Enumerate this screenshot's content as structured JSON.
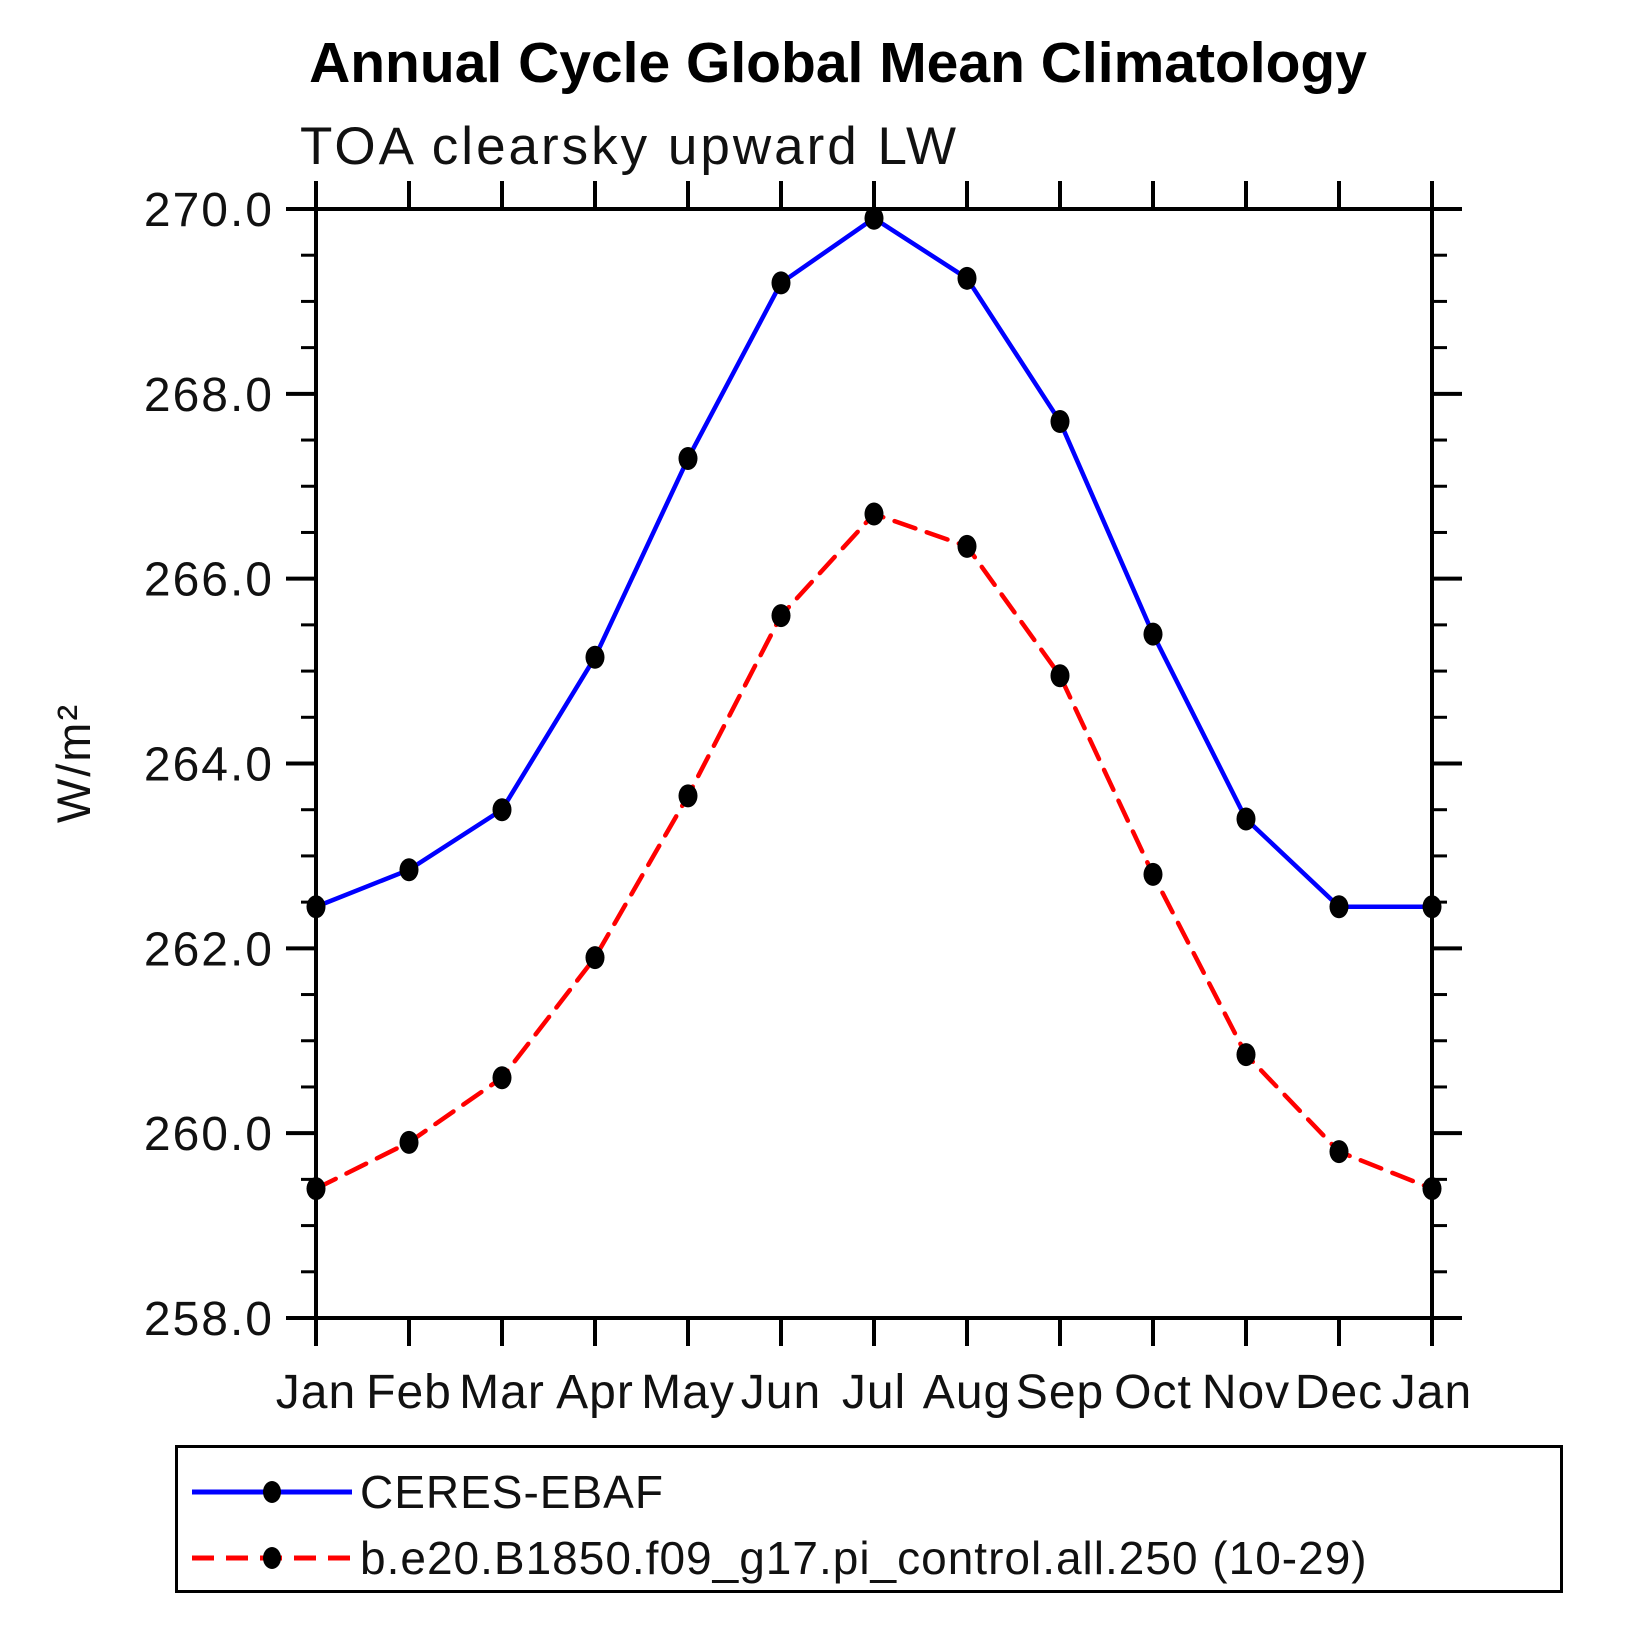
{
  "title": "Annual Cycle Global Mean Climatology",
  "subtitle": "TOA clearsky upward LW",
  "chart_data": {
    "type": "line",
    "title": "Annual Cycle Global Mean Climatology",
    "subtitle": "TOA clearsky upward LW",
    "ylabel": "W/m²",
    "xlabel": "",
    "x_categories": [
      "Jan",
      "Feb",
      "Mar",
      "Apr",
      "May",
      "Jun",
      "Jul",
      "Aug",
      "Sep",
      "Oct",
      "Nov",
      "Dec",
      "Jan"
    ],
    "ylim": [
      258.0,
      270.0
    ],
    "ytick_major_interval": 2.0,
    "ytick_minor_interval": 0.5,
    "ytick_labels": [
      "258.0",
      "260.0",
      "262.0",
      "264.0",
      "266.0",
      "268.0",
      "270.0"
    ],
    "grid": "off",
    "legend_position": "bottom-left-box",
    "series": [
      {
        "name": "CERES-EBAF",
        "color": "#0000ff",
        "line_style": "solid",
        "marker": "filled-circle",
        "marker_color": "#000000",
        "values": [
          262.45,
          262.85,
          263.5,
          265.15,
          267.3,
          269.2,
          269.9,
          269.25,
          267.7,
          265.4,
          263.4,
          262.45,
          262.45
        ]
      },
      {
        "name": "b.e20.B1850.f09_g17.pi_control.all.250 (10-29)",
        "color": "#ff0000",
        "line_style": "dashed",
        "marker": "filled-circle",
        "marker_color": "#000000",
        "values": [
          259.4,
          259.9,
          260.6,
          261.9,
          263.65,
          265.6,
          266.7,
          266.35,
          264.95,
          262.8,
          260.85,
          259.8,
          259.4
        ]
      }
    ],
    "frame_color": "#000000"
  }
}
